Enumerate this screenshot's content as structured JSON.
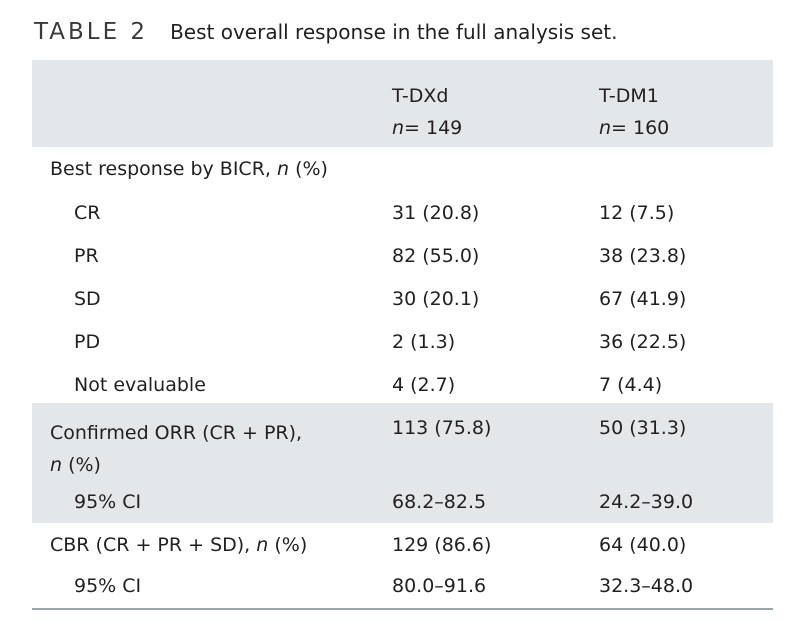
{
  "caption": {
    "label": "TABLE 2",
    "title": "Best overall response in the full analysis set."
  },
  "columns": [
    {
      "name": "T-DXd",
      "n_label": "n",
      "n_value": "= 149"
    },
    {
      "name": "T-DM1",
      "n_label": "n",
      "n_value": "= 160"
    }
  ],
  "section1": {
    "label_prefix": "Best response by BICR, ",
    "label_italic": "n",
    "label_suffix": " (%)",
    "rows": [
      {
        "label": "CR",
        "tdxd": "31 (20.8)",
        "tdm1": "12 (7.5)"
      },
      {
        "label": "PR",
        "tdxd": "82 (55.0)",
        "tdm1": "38 (23.8)"
      },
      {
        "label": "SD",
        "tdxd": "30 (20.1)",
        "tdm1": "67 (41.9)"
      },
      {
        "label": "PD",
        "tdxd": "2 (1.3)",
        "tdm1": "36 (22.5)"
      },
      {
        "label": "Not evaluable",
        "tdxd": "4 (2.7)",
        "tdm1": "7 (4.4)"
      }
    ]
  },
  "orr": {
    "label_line1": "Confirmed ORR (CR + PR),",
    "label_line2_italic": "n",
    "label_line2_suffix": " (%)",
    "tdxd": "113 (75.8)",
    "tdm1": "50 (31.3)",
    "ci_label": "95% CI",
    "ci_tdxd": "68.2–82.5",
    "ci_tdm1": "24.2–39.0"
  },
  "cbr": {
    "label_prefix": "CBR (CR + PR + SD), ",
    "label_italic": "n",
    "label_suffix": " (%)",
    "tdxd": "129 (86.6)",
    "tdm1": "64 (40.0)",
    "ci_label": "95% CI",
    "ci_tdxd": "80.0–91.6",
    "ci_tdm1": "32.3–48.0"
  }
}
